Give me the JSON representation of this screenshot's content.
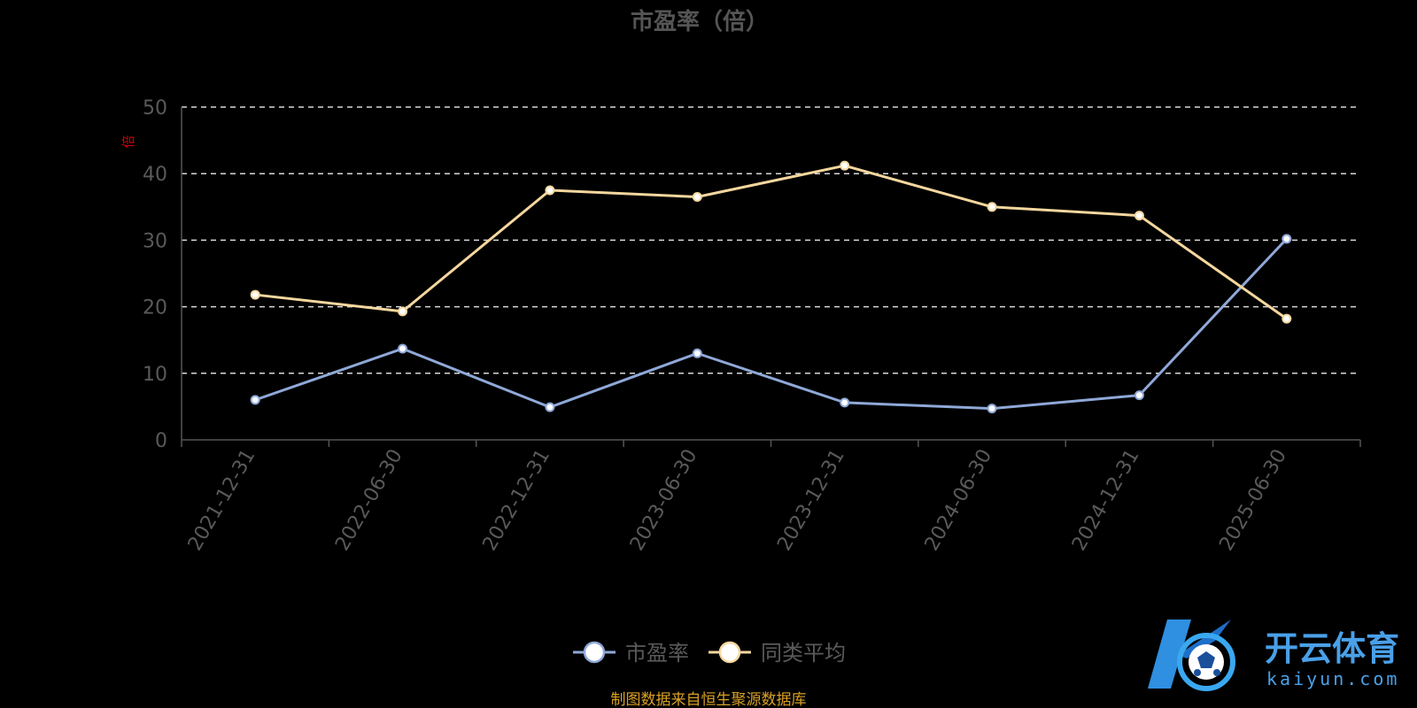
{
  "watermark": {
    "name": "开云体育",
    "domain": "kaiyun.com"
  },
  "source_note": "制图数据来自恒生聚源数据库",
  "chart_data": {
    "type": "line",
    "title": "市盈率（倍）",
    "unit_label": "倍",
    "ylim": [
      0,
      50
    ],
    "y_ticks": [
      0,
      10,
      20,
      30,
      40,
      50
    ],
    "grid": true,
    "legend_position": "bottom-center",
    "x": [
      "2021-12-31",
      "2022-06-30",
      "2022-12-31",
      "2023-06-30",
      "2023-12-31",
      "2024-06-30",
      "2024-12-31",
      "2025-06-30"
    ],
    "series": [
      {
        "name": "市盈率",
        "color": "#8fa8d8",
        "values": [
          6.0,
          13.7,
          4.9,
          13.0,
          5.6,
          4.7,
          6.7,
          30.2
        ]
      },
      {
        "name": "同类平均",
        "color": "#f5d79e",
        "values": [
          21.8,
          19.3,
          37.5,
          36.5,
          41.2,
          35.0,
          33.7,
          18.2
        ]
      }
    ]
  }
}
